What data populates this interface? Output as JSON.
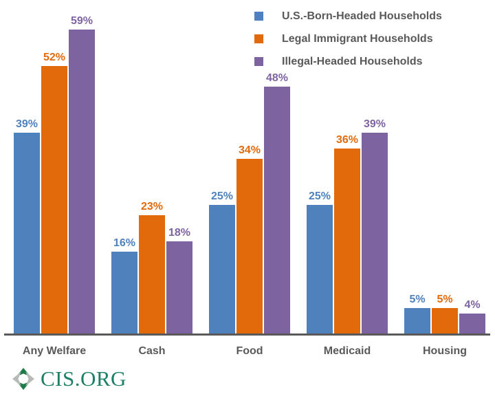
{
  "chart_data": {
    "type": "bar",
    "title": "",
    "categories": [
      "Any Welfare",
      "Cash",
      "Food",
      "Medicaid",
      "Housing"
    ],
    "series": [
      {
        "name": "U.S.-Born-Headed Households",
        "color": "#4F81BD",
        "values": [
          39,
          16,
          25,
          25,
          5
        ]
      },
      {
        "name": "Legal Immigrant Households",
        "color": "#E26A0B",
        "values": [
          52,
          23,
          34,
          36,
          5
        ]
      },
      {
        "name": "Illegal-Headed Households",
        "color": "#7E63A1",
        "values": [
          59,
          18,
          48,
          39,
          4
        ]
      }
    ],
    "value_suffix": "%",
    "ylim": [
      0,
      62
    ],
    "grid": false,
    "data_labels": true,
    "legend_position": "top-right",
    "axis_line_color": "#595959",
    "category_label_color": "#595959",
    "legend_text_color": "#595959"
  },
  "branding": {
    "logo_text": "CIS.ORG",
    "logo_text_color": "#1C7F66",
    "icon_name": "cis-clover-icon",
    "icon_green": "#1E7B49",
    "icon_gray": "#B7BBB7"
  }
}
